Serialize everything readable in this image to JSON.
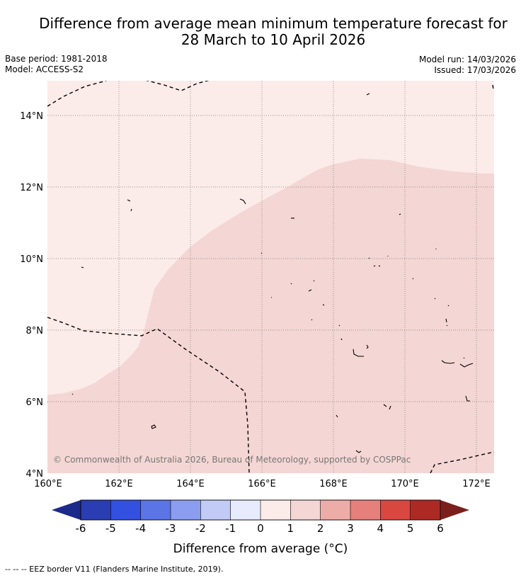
{
  "title": {
    "line1": "Difference from average mean minimum temperature forecast for",
    "line2": "28 March to 10 April 2026"
  },
  "meta": {
    "base_period": "Base period: 1981-2018",
    "model": "Model: ACCESS-S2",
    "model_run": "Model run: 14/03/2026",
    "issued": "Issued: 17/03/2026"
  },
  "map": {
    "lat_labels": [
      "14°N",
      "12°N",
      "10°N",
      "8°N",
      "6°N",
      "4°N"
    ],
    "lon_labels": [
      "160°E",
      "162°E",
      "164°E",
      "166°E",
      "168°E",
      "170°E",
      "172°E"
    ],
    "copyright": "© Commonwealth of Australia 2026, Bureau of Meteorology, supported by COSPPac",
    "colors": {
      "zero_to_one": "#fbebe9",
      "one_to_two": "#f4d6d4",
      "gridline": "#777777",
      "border": "#000000"
    }
  },
  "colorbar": {
    "tick_labels": [
      "-6",
      "-5",
      "-4",
      "-3",
      "-2",
      "-1",
      "0",
      "1",
      "2",
      "3",
      "4",
      "5",
      "6"
    ],
    "colors": [
      "#2b3db2",
      "#3450e0",
      "#5b74e6",
      "#8a9df0",
      "#c2cbf5",
      "#e8ebfc",
      "#fbebe9",
      "#f4d6d4",
      "#eeaca9",
      "#e6807c",
      "#d84740",
      "#ad2a24"
    ],
    "under_color": "#1c2a8a",
    "over_color": "#7b1f1c",
    "title": "Difference from average (°C)"
  },
  "footer": {
    "legend": "--  --  -- EEZ border V11 (Flanders Marine Institute, 2019)."
  }
}
